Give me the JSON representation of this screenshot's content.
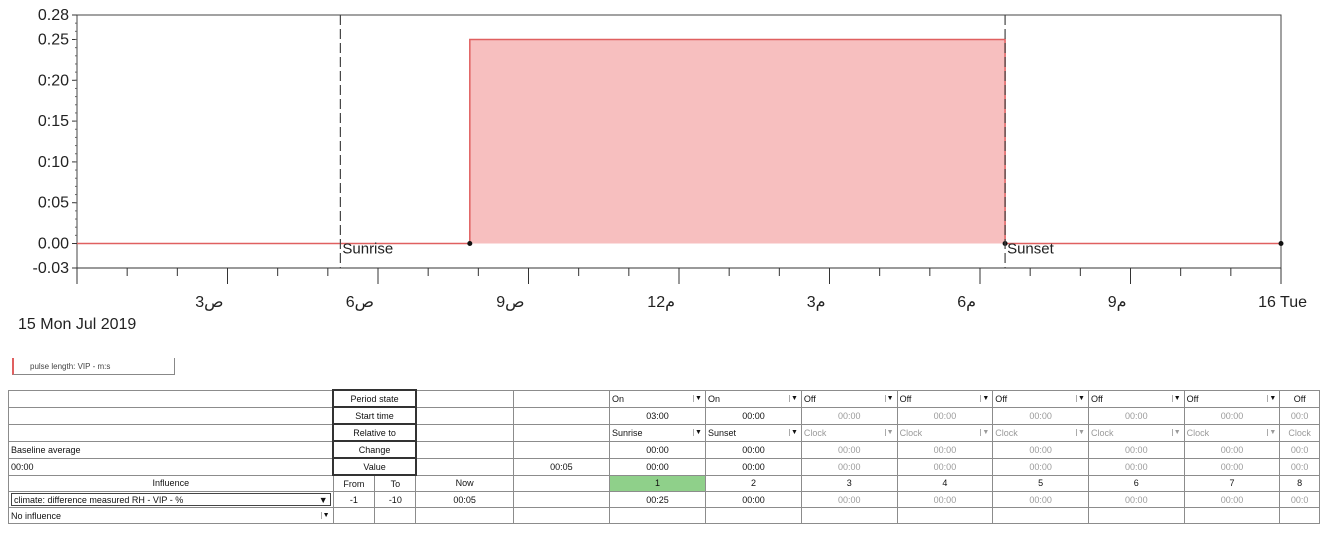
{
  "chart_data": {
    "type": "area",
    "y_ticks": [
      "0.28",
      "0.25",
      "0:20",
      "0:15",
      "0:10",
      "0:05",
      "0.00",
      "-0.03"
    ],
    "ylim": [
      -0.03,
      0.28
    ],
    "x_ticks": [
      "3ص",
      "6ص",
      "9ص",
      "12م",
      "3م",
      "6م",
      "9م",
      "16 Tue"
    ],
    "x_unit": "hours",
    "xlim": [
      0,
      24
    ],
    "date_label": "15 Mon Jul 2019",
    "series": [
      {
        "name": "pulse length: VIP - m:s",
        "color": "#e06060",
        "points": [
          [
            0,
            0
          ],
          [
            7.83,
            0
          ],
          [
            7.83,
            0.25
          ],
          [
            18.5,
            0.25
          ],
          [
            18.5,
            0
          ],
          [
            24,
            0
          ]
        ]
      }
    ],
    "events": [
      {
        "label": "Sunrise",
        "x": 5.25
      },
      {
        "label": "Sunset",
        "x": 18.5
      }
    ],
    "fill_color": "#f6b8b8"
  },
  "legend": {
    "label": "pulse length: VIP - m:s"
  },
  "table": {
    "rows": [
      {
        "left": "",
        "label": "Period state",
        "now": "",
        "periods": [
          "On",
          "On",
          "Off",
          "Off",
          "Off",
          "Off",
          "Off",
          "Off"
        ]
      },
      {
        "left": "",
        "label": "Start time",
        "now": "",
        "periods": [
          "03:00",
          "00:00",
          "00:00",
          "00:00",
          "00:00",
          "00:00",
          "00:00",
          "00:0"
        ]
      },
      {
        "left": "",
        "label": "Relative to",
        "now": "",
        "periods": [
          "Sunrise",
          "Sunset",
          "Clock",
          "Clock",
          "Clock",
          "Clock",
          "Clock",
          "Clock"
        ]
      },
      {
        "left": "Baseline average",
        "label": "Change",
        "now": "",
        "periods": [
          "00:00",
          "00:00",
          "00:00",
          "00:00",
          "00:00",
          "00:00",
          "00:00",
          "00:0"
        ]
      },
      {
        "left": "00:00",
        "label": "Value",
        "now": "00:05",
        "periods": [
          "00:00",
          "00:00",
          "00:00",
          "00:00",
          "00:00",
          "00:00",
          "00:00",
          "00:0"
        ]
      }
    ],
    "header": {
      "influence": "Influence",
      "from": "From",
      "to": "To",
      "now": "Now",
      "periods": [
        "1",
        "2",
        "3",
        "4",
        "5",
        "6",
        "7",
        "8"
      ]
    },
    "influences": [
      {
        "name": "climate: difference measured RH - VIP - %",
        "from": "-1",
        "to": "-10",
        "now": "00:05",
        "periods": [
          "00:25",
          "00:00",
          "00:00",
          "00:00",
          "00:00",
          "00:00",
          "00:00",
          "00:0"
        ]
      },
      {
        "name": "No influence",
        "from": "",
        "to": "",
        "now": "",
        "periods": [
          "",
          "",
          "",
          "",
          "",
          "",
          "",
          ""
        ]
      }
    ]
  }
}
